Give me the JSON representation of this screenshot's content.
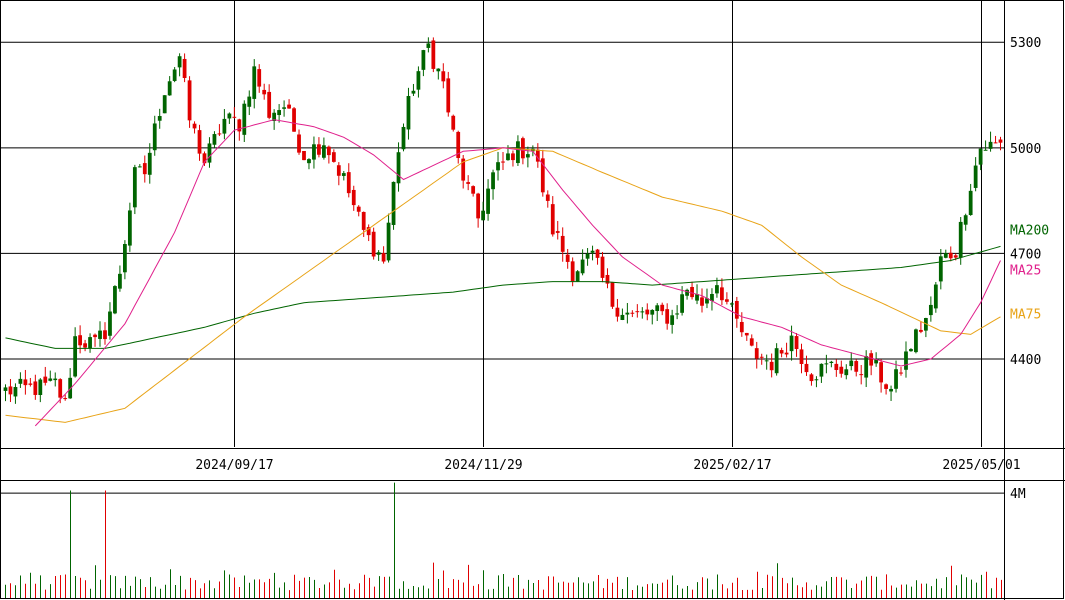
{
  "chart_data": {
    "type": "candlestick",
    "x_labels": [
      "2024/09/17",
      "2024/11/29",
      "2025/02/17",
      "2025/05/01"
    ],
    "x_label_index": [
      46,
      96,
      146,
      196
    ],
    "y_ticks": [
      5300,
      5000,
      4700,
      4400
    ],
    "ylim": [
      4150,
      5420
    ],
    "volume_ticks": [
      "4M"
    ],
    "volume_tick_values": [
      4000000
    ],
    "volume_ylim": [
      0,
      4500000
    ],
    "legend": [
      {
        "name": "MA200",
        "color": "#006400",
        "value": 4720
      },
      {
        "name": "MA25",
        "color": "#e0208c",
        "value": 4680
      },
      {
        "name": "MA75",
        "color": "#e8a317",
        "value": 4530
      }
    ],
    "anchors": [
      [
        0,
        4310
      ],
      [
        8,
        4320
      ],
      [
        10,
        4330
      ],
      [
        12,
        4270
      ],
      [
        14,
        4460
      ],
      [
        18,
        4440
      ],
      [
        20,
        4480
      ],
      [
        23,
        4650
      ],
      [
        26,
        4920
      ],
      [
        28,
        4930
      ],
      [
        32,
        5170
      ],
      [
        35,
        5260
      ],
      [
        37,
        5080
      ],
      [
        40,
        4960
      ],
      [
        44,
        5080
      ],
      [
        47,
        5070
      ],
      [
        50,
        5220
      ],
      [
        53,
        5100
      ],
      [
        56,
        5120
      ],
      [
        60,
        4980
      ],
      [
        64,
        5020
      ],
      [
        68,
        4910
      ],
      [
        72,
        4760
      ],
      [
        76,
        4680
      ],
      [
        79,
        5000
      ],
      [
        82,
        5180
      ],
      [
        85,
        5290
      ],
      [
        88,
        5180
      ],
      [
        91,
        4960
      ],
      [
        95,
        4800
      ],
      [
        98,
        4920
      ],
      [
        102,
        4990
      ],
      [
        106,
        5000
      ],
      [
        110,
        4770
      ],
      [
        114,
        4650
      ],
      [
        118,
        4690
      ],
      [
        122,
        4560
      ],
      [
        126,
        4520
      ],
      [
        130,
        4530
      ],
      [
        134,
        4520
      ],
      [
        137,
        4600
      ],
      [
        140,
        4560
      ],
      [
        143,
        4620
      ],
      [
        146,
        4530
      ],
      [
        150,
        4420
      ],
      [
        154,
        4390
      ],
      [
        158,
        4460
      ],
      [
        162,
        4360
      ],
      [
        166,
        4380
      ],
      [
        170,
        4370
      ],
      [
        174,
        4390
      ],
      [
        178,
        4310
      ],
      [
        182,
        4440
      ],
      [
        186,
        4540
      ],
      [
        188,
        4680
      ],
      [
        191,
        4710
      ],
      [
        194,
        4900
      ],
      [
        196,
        5000
      ],
      [
        200,
        5010
      ]
    ],
    "ma25_anchors": [
      [
        6,
        4210
      ],
      [
        14,
        4330
      ],
      [
        24,
        4500
      ],
      [
        34,
        4760
      ],
      [
        40,
        4960
      ],
      [
        46,
        5050
      ],
      [
        54,
        5080
      ],
      [
        62,
        5060
      ],
      [
        68,
        5030
      ],
      [
        74,
        4980
      ],
      [
        80,
        4910
      ],
      [
        86,
        4950
      ],
      [
        92,
        4990
      ],
      [
        100,
        5000
      ],
      [
        106,
        4990
      ],
      [
        112,
        4880
      ],
      [
        118,
        4780
      ],
      [
        124,
        4690
      ],
      [
        132,
        4610
      ],
      [
        140,
        4580
      ],
      [
        148,
        4520
      ],
      [
        156,
        4490
      ],
      [
        164,
        4440
      ],
      [
        172,
        4410
      ],
      [
        180,
        4380
      ],
      [
        186,
        4400
      ],
      [
        192,
        4470
      ],
      [
        196,
        4560
      ],
      [
        200,
        4680
      ]
    ],
    "ma75_anchors": [
      [
        0,
        4240
      ],
      [
        12,
        4220
      ],
      [
        24,
        4260
      ],
      [
        36,
        4390
      ],
      [
        48,
        4520
      ],
      [
        60,
        4640
      ],
      [
        72,
        4760
      ],
      [
        84,
        4880
      ],
      [
        92,
        4960
      ],
      [
        100,
        5000
      ],
      [
        110,
        4990
      ],
      [
        120,
        4930
      ],
      [
        132,
        4860
      ],
      [
        144,
        4820
      ],
      [
        152,
        4780
      ],
      [
        160,
        4690
      ],
      [
        168,
        4610
      ],
      [
        176,
        4560
      ],
      [
        182,
        4520
      ],
      [
        188,
        4480
      ],
      [
        194,
        4470
      ],
      [
        200,
        4520
      ]
    ],
    "ma200_anchors": [
      [
        0,
        4460
      ],
      [
        10,
        4430
      ],
      [
        20,
        4430
      ],
      [
        30,
        4460
      ],
      [
        40,
        4490
      ],
      [
        50,
        4530
      ],
      [
        60,
        4560
      ],
      [
        70,
        4570
      ],
      [
        80,
        4580
      ],
      [
        90,
        4590
      ],
      [
        100,
        4610
      ],
      [
        110,
        4620
      ],
      [
        120,
        4620
      ],
      [
        130,
        4610
      ],
      [
        140,
        4620
      ],
      [
        150,
        4630
      ],
      [
        160,
        4640
      ],
      [
        170,
        4650
      ],
      [
        180,
        4660
      ],
      [
        190,
        4680
      ],
      [
        200,
        4720
      ]
    ]
  }
}
